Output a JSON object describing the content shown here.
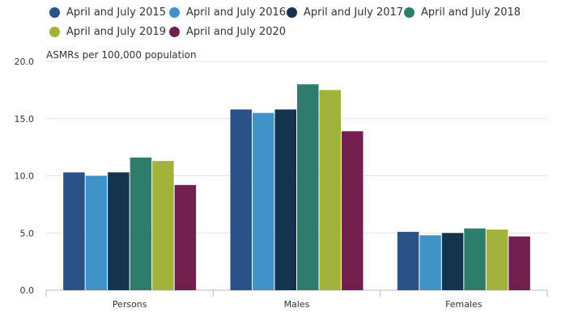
{
  "chart_data": {
    "type": "bar",
    "title": "",
    "xlabel": "",
    "ylabel": "ASMRs per 100,000 population",
    "ylim": [
      0,
      20
    ],
    "yticks": [
      "0.0",
      "5.0",
      "10.0",
      "15.0",
      "20.0"
    ],
    "grid": true,
    "legend_position": "top",
    "categories": [
      "Persons",
      "Males",
      "Females"
    ],
    "series": [
      {
        "name": "April and July 2015",
        "color": "#2a5289",
        "values": [
          10.3,
          15.8,
          5.1
        ]
      },
      {
        "name": "April and July 2016",
        "color": "#3f93c8",
        "values": [
          10.0,
          15.5,
          4.8
        ]
      },
      {
        "name": "April and July 2017",
        "color": "#14344d",
        "values": [
          10.3,
          15.8,
          5.0
        ]
      },
      {
        "name": "April and July 2018",
        "color": "#2e7d6a",
        "values": [
          11.6,
          18.0,
          5.4
        ]
      },
      {
        "name": "April and July 2019",
        "color": "#a3b23b",
        "values": [
          11.3,
          17.5,
          5.3
        ]
      },
      {
        "name": "April and July 2020",
        "color": "#73204e",
        "values": [
          9.2,
          13.9,
          4.7
        ]
      }
    ]
  }
}
